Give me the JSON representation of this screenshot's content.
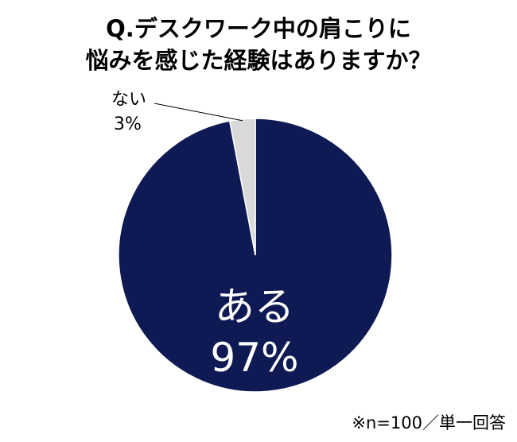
{
  "chart_data": {
    "type": "pie",
    "title_lines": [
      "Q.デスクワーク中の肩こりに",
      "悩みを感じた経験はありますか？"
    ],
    "slices": [
      {
        "label": "ある",
        "value": 97,
        "value_label": "97%",
        "color": "#0f1a55"
      },
      {
        "label": "ない",
        "value": 3,
        "value_label": "3%",
        "color": "#d9d9d9"
      }
    ],
    "note": "※n=100／単一回答"
  }
}
